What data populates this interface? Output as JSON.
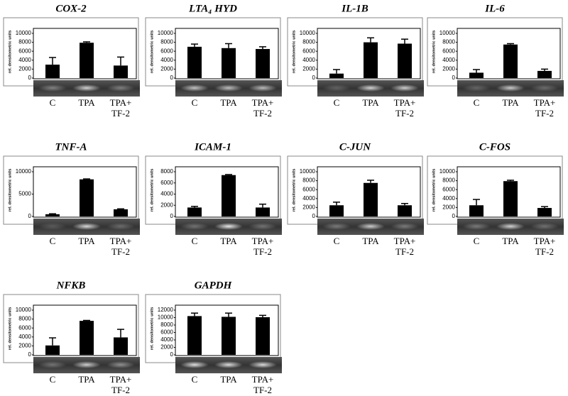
{
  "chart_data": [
    {
      "type": "bar",
      "title": "COX-2",
      "ylabel": "rel. densitometric units",
      "categories": [
        "C",
        "TPA",
        "TPA+\nTF-2"
      ],
      "values": [
        3000,
        7900,
        2800
      ],
      "errors": [
        1600,
        200,
        1900
      ],
      "color": "#000000",
      "ylim": [
        0,
        10000
      ],
      "yticks": [
        0,
        2000,
        4000,
        6000,
        8000,
        10000
      ]
    },
    {
      "type": "bar",
      "title": "LTA₄ HYD",
      "ylabel": "rel. densitometric units",
      "categories": [
        "C",
        "TPA",
        "TPA+\nTF-2"
      ],
      "values": [
        7000,
        6700,
        6500
      ],
      "errors": [
        600,
        1000,
        500
      ],
      "color": "#000000",
      "ylim": [
        0,
        10000
      ],
      "yticks": [
        0,
        2000,
        4000,
        6000,
        8000,
        10000
      ]
    },
    {
      "type": "bar",
      "title": "IL-1B",
      "ylabel": "rel. densitometric units",
      "categories": [
        "C",
        "TPA",
        "TPA+\nTF-2"
      ],
      "values": [
        1000,
        8000,
        7700
      ],
      "errors": [
        900,
        1000,
        1000
      ],
      "color": "#000000",
      "ylim": [
        0,
        10000
      ],
      "yticks": [
        0,
        2000,
        4000,
        6000,
        8000,
        10000
      ]
    },
    {
      "type": "bar",
      "title": "IL-6",
      "ylabel": "rel. densitometric units",
      "categories": [
        "C",
        "TPA",
        "TPA+\nTF-2"
      ],
      "values": [
        1200,
        7500,
        1600
      ],
      "errors": [
        700,
        200,
        400
      ],
      "color": "#000000",
      "ylim": [
        0,
        10000
      ],
      "yticks": [
        0,
        2000,
        4000,
        6000,
        8000,
        10000
      ]
    },
    {
      "type": "bar",
      "title": "TNF-A",
      "ylabel": "rel. densitometric units",
      "categories": [
        "C",
        "TPA",
        "TPA+\nTF-2"
      ],
      "values": [
        500,
        8300,
        1600
      ],
      "errors": [
        100,
        100,
        100
      ],
      "color": "#000000",
      "ylim": [
        0,
        10000
      ],
      "yticks": [
        0,
        5000,
        10000
      ]
    },
    {
      "type": "bar",
      "title": "ICAM-1",
      "ylabel": "rel. densitometric units",
      "categories": [
        "C",
        "TPA",
        "TPA+\nTF-2"
      ],
      "values": [
        1600,
        7400,
        1600
      ],
      "errors": [
        200,
        100,
        600
      ],
      "color": "#000000",
      "ylim": [
        0,
        8000
      ],
      "yticks": [
        0,
        2000,
        4000,
        6000,
        8000
      ]
    },
    {
      "type": "bar",
      "title": "C-JUN",
      "ylabel": "rel. densitometric units",
      "categories": [
        "C",
        "TPA",
        "TPA+\nTF-2"
      ],
      "values": [
        2500,
        7500,
        2500
      ],
      "errors": [
        700,
        600,
        400
      ],
      "color": "#000000",
      "ylim": [
        0,
        10000
      ],
      "yticks": [
        0,
        2000,
        4000,
        6000,
        8000,
        10000
      ]
    },
    {
      "type": "bar",
      "title": "C-FOS",
      "ylabel": "rel. densitometric units",
      "categories": [
        "C",
        "TPA",
        "TPA+\nTF-2"
      ],
      "values": [
        2500,
        7900,
        1900
      ],
      "errors": [
        1300,
        200,
        300
      ],
      "color": "#000000",
      "ylim": [
        0,
        10000
      ],
      "yticks": [
        0,
        2000,
        4000,
        6000,
        8000,
        10000
      ]
    },
    {
      "type": "bar",
      "title": "NFKB",
      "ylabel": "rel. densitometric units",
      "categories": [
        "C",
        "TPA",
        "TPA+\nTF-2"
      ],
      "values": [
        2100,
        7600,
        3900
      ],
      "errors": [
        1700,
        100,
        1800
      ],
      "color": "#000000",
      "ylim": [
        0,
        10000
      ],
      "yticks": [
        0,
        2000,
        4000,
        6000,
        8000,
        10000
      ]
    },
    {
      "type": "bar",
      "title": "GAPDH",
      "ylabel": "rel. densitometric units",
      "categories": [
        "C",
        "TPA",
        "TPA+\nTF-2"
      ],
      "values": [
        10400,
        10200,
        10100
      ],
      "errors": [
        800,
        1000,
        500
      ],
      "color": "#000000",
      "ylim": [
        0,
        12000
      ],
      "yticks": [
        0,
        2000,
        4000,
        6000,
        8000,
        10000,
        12000
      ]
    }
  ]
}
